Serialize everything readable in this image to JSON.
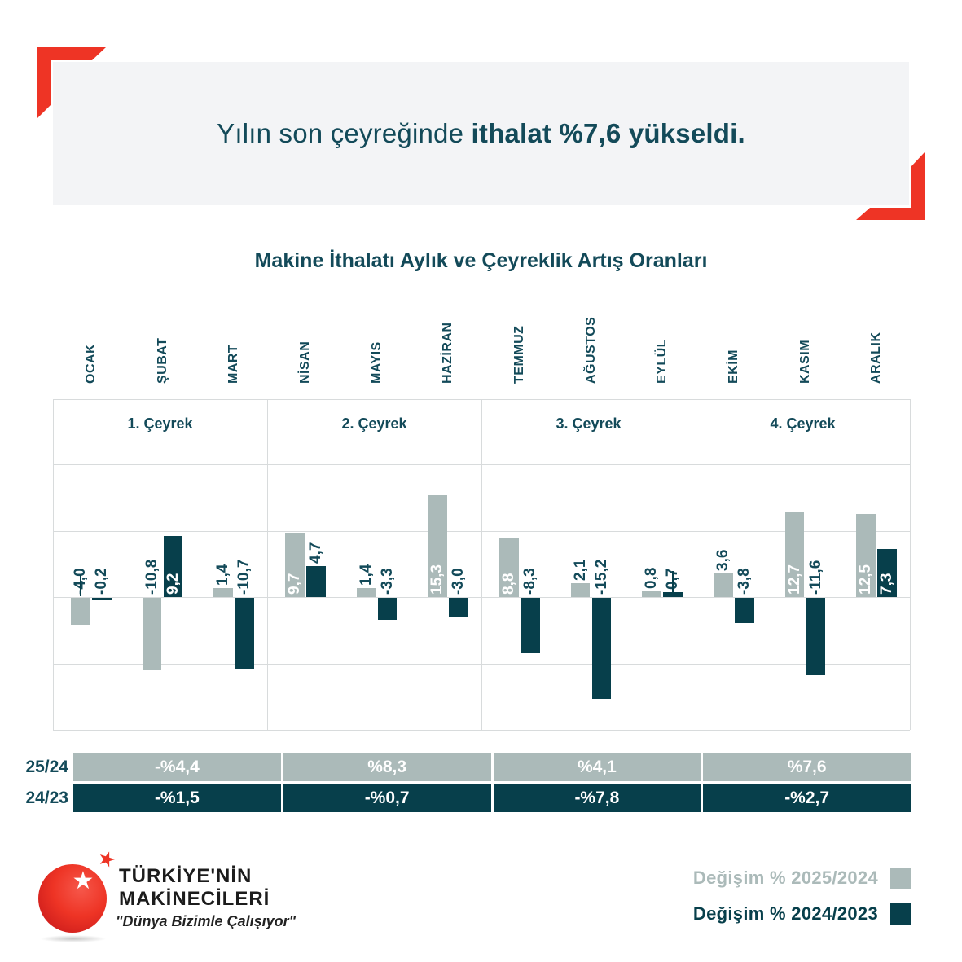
{
  "header": {
    "text_regular": "Yılın son çeyreğinde",
    "text_bold": " ithalat %7,6 yükseldi."
  },
  "chart_data": {
    "type": "bar",
    "title": "Makine İthalatı Aylık ve Çeyreklik Artış Oranları",
    "categories": [
      "OCAK",
      "ŞUBAT",
      "MART",
      "NİSAN",
      "MAYIS",
      "HAZİRAN",
      "TEMMUZ",
      "AĞUSTOS",
      "EYLÜL",
      "EKİM",
      "KASIM",
      "ARALIK"
    ],
    "quarters": [
      "1. Çeyrek",
      "2. Çeyrek",
      "3. Çeyrek",
      "4. Çeyrek"
    ],
    "ylim": [
      -20,
      20
    ],
    "grid_step": 10,
    "legend_position": "bottom-right",
    "series": [
      {
        "name": "Değişim % 2025/2024",
        "color": "#abbab9",
        "values": [
          -4.0,
          -10.8,
          1.4,
          9.7,
          1.4,
          15.3,
          8.8,
          2.1,
          0.8,
          3.6,
          12.7,
          12.5
        ],
        "labels": [
          "-4,0",
          "-10,8",
          "1,4",
          "9,7",
          "1,4",
          "15,3",
          "8,8",
          "2,1",
          "0,8",
          "3,6",
          "12,7",
          "12,5"
        ],
        "label_inside": [
          false,
          false,
          false,
          true,
          false,
          true,
          true,
          false,
          false,
          false,
          true,
          true
        ],
        "leader_ticks": [
          0
        ]
      },
      {
        "name": "Değişim % 2024/2023",
        "color": "#073f4b",
        "values": [
          -0.2,
          9.2,
          -10.7,
          4.7,
          -3.3,
          -3.0,
          -8.3,
          -15.2,
          0.7,
          -3.8,
          -11.6,
          7.3
        ],
        "labels": [
          "-0,2",
          "9,2",
          "-10,7",
          "4,7",
          "-3,3",
          "-3,0",
          "-8,3",
          "-15,2",
          "0,7",
          "-3,8",
          "-11,6",
          "7,3"
        ],
        "label_inside": [
          false,
          true,
          false,
          false,
          false,
          false,
          false,
          false,
          false,
          false,
          false,
          true
        ],
        "leader_ticks": [
          8
        ]
      }
    ],
    "quarter_table": {
      "rows": [
        {
          "label": "25/24",
          "values": [
            "-%4,4",
            "%8,3",
            "%4,1",
            "%7,6"
          ],
          "bg": "#abbab9"
        },
        {
          "label": "24/23",
          "values": [
            "-%1,5",
            "-%0,7",
            "-%7,8",
            "-%2,7"
          ],
          "bg": "#073f4b"
        }
      ]
    }
  },
  "legend": {
    "items": [
      {
        "label": "Değişim % 2025/2024",
        "color": "#abbab9"
      },
      {
        "label": "Değişim % 2024/2023",
        "color": "#073f4b"
      }
    ]
  },
  "logo": {
    "line1": "TÜRKİYE'NİN",
    "line2": "MAKİNECİLERİ",
    "tagline": "\"Dünya Bizimle Çalışıyor\"",
    "star": "★"
  },
  "colors": {
    "teal_text": "#134a59",
    "dark_bar": "#073f4b",
    "gray_bar": "#abbab9",
    "red_accent": "#ee3425",
    "band_bg": "#f3f4f6",
    "gridline": "#d8dbdc",
    "white": "#ffffff"
  }
}
